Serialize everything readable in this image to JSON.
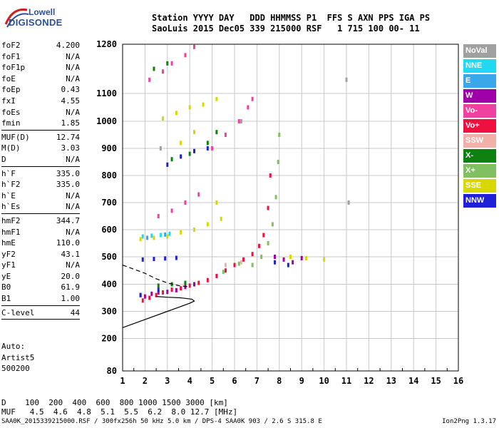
{
  "logo": {
    "line1": "Lowell",
    "line2": "DIGISONDE"
  },
  "header": {
    "line1": "Station YYYY DAY   DDD HHMMSS P1  FFS S AXN PPS IGA PS",
    "line2": "SaoLuis 2015 Dec05 339 215000 RSF   1 715 100 00- 11"
  },
  "params_group1": [
    {
      "k": "foF2",
      "v": "4.200"
    },
    {
      "k": "foF1",
      "v": "N/A"
    },
    {
      "k": "foF1p",
      "v": "N/A"
    },
    {
      "k": "foE",
      "v": "N/A"
    },
    {
      "k": "foEp",
      "v": "0.43"
    },
    {
      "k": "fxI",
      "v": "4.55"
    },
    {
      "k": "foEs",
      "v": "N/A"
    },
    {
      "k": "fmin",
      "v": "1.85"
    }
  ],
  "params_group2": [
    {
      "k": "MUF(D)",
      "v": "12.74"
    },
    {
      "k": "M(D)",
      "v": "3.03"
    },
    {
      "k": "D",
      "v": "N/A"
    }
  ],
  "params_group3": [
    {
      "k": "h`F",
      "v": "335.0"
    },
    {
      "k": "h`F2",
      "v": "335.0"
    },
    {
      "k": "h`E",
      "v": "N/A"
    },
    {
      "k": "h`Es",
      "v": "N/A"
    }
  ],
  "params_group4": [
    {
      "k": "hmF2",
      "v": "344.7"
    },
    {
      "k": "hmF1",
      "v": "N/A"
    },
    {
      "k": "hmE",
      "v": "110.0"
    },
    {
      "k": "yF2",
      "v": "43.1"
    },
    {
      "k": "yF1",
      "v": "N/A"
    },
    {
      "k": "yE",
      "v": "20.0"
    },
    {
      "k": "B0",
      "v": "61.9"
    },
    {
      "k": "B1",
      "v": "1.00"
    }
  ],
  "params_group5": [
    {
      "k": "C-level",
      "v": "44"
    }
  ],
  "auto": {
    "l1": "Auto:",
    "l2": "Artist5",
    "l3": "500200"
  },
  "legend": [
    {
      "label": "NoVal",
      "color": "#a0a0a0"
    },
    {
      "label": "NNE",
      "color": "#22d8f0"
    },
    {
      "label": "E",
      "color": "#3aa8e8"
    },
    {
      "label": "W",
      "color": "#a000a8"
    },
    {
      "label": "Vo-",
      "color": "#f040a0"
    },
    {
      "label": "Vo+",
      "color": "#f01040"
    },
    {
      "label": "SSW",
      "color": "#f0b0a8"
    },
    {
      "label": "X-",
      "color": "#108010"
    },
    {
      "label": "X+",
      "color": "#80c060"
    },
    {
      "label": "SSE",
      "color": "#d8d800"
    },
    {
      "label": "NNW",
      "color": "#2020d8"
    }
  ],
  "dmuf": {
    "d_row": "D    100  200  400  600  800 1000 1500 3000 [km]",
    "muf_row": "MUF   4.5  4.6  4.8  5.1  5.5  6.2  8.0 12.7 [MHz]"
  },
  "footer": "SAA0K_2015339215000.RSF / 300fx256h 50 kHz 5.0 km / DPS-4 SAA0K 903 / 2.6 S 315.8 E",
  "version": "Ion2Png 1.3.17",
  "chart_data": {
    "type": "scatter",
    "x_ticks": [
      1,
      2,
      3,
      4,
      5,
      6,
      7,
      8,
      9,
      10,
      11,
      12,
      13,
      14,
      15,
      16
    ],
    "y_ticks": [
      80,
      200,
      300,
      400,
      500,
      600,
      700,
      800,
      900,
      1000,
      1100,
      1280
    ],
    "xlim": [
      1,
      16
    ],
    "y_scale": "piecewise",
    "grid": true,
    "legend_position": "right",
    "series": [
      {
        "name": "Vo+",
        "color": "#f01040",
        "points": [
          [
            1.9,
            340
          ],
          [
            2.2,
            350
          ],
          [
            2.5,
            360
          ],
          [
            2.8,
            370
          ],
          [
            3.2,
            380
          ],
          [
            3.6,
            385
          ],
          [
            4.0,
            395
          ],
          [
            4.4,
            405
          ],
          [
            4.8,
            415
          ],
          [
            5.2,
            430
          ],
          [
            5.6,
            450
          ],
          [
            6.0,
            470
          ],
          [
            6.4,
            490
          ],
          [
            6.8,
            510
          ],
          [
            7.1,
            540
          ],
          [
            7.3,
            580
          ],
          [
            7.5,
            680
          ],
          [
            7.6,
            800
          ]
        ]
      },
      {
        "name": "W",
        "color": "#a000a8",
        "points": [
          [
            1.8,
            360
          ],
          [
            2.0,
            355
          ],
          [
            2.3,
            365
          ],
          [
            2.6,
            370
          ],
          [
            3.0,
            372
          ],
          [
            3.4,
            378
          ],
          [
            3.8,
            390
          ],
          [
            4.2,
            400
          ],
          [
            7.8,
            500
          ],
          [
            8.2,
            490
          ],
          [
            8.6,
            480
          ],
          [
            9.0,
            495
          ]
        ]
      },
      {
        "name": "X+",
        "color": "#80c060",
        "points": [
          [
            6.8,
            470
          ],
          [
            7.2,
            500
          ],
          [
            7.5,
            550
          ],
          [
            7.7,
            620
          ],
          [
            7.85,
            720
          ],
          [
            7.95,
            850
          ],
          [
            8.0,
            950
          ],
          [
            5.5,
            445
          ],
          [
            6.2,
            475
          ]
        ]
      },
      {
        "name": "SSE",
        "color": "#d8d800",
        "points": [
          [
            1.8,
            565
          ],
          [
            2.4,
            570
          ],
          [
            3.0,
            575
          ],
          [
            3.6,
            590
          ],
          [
            4.2,
            600
          ],
          [
            4.8,
            620
          ],
          [
            5.4,
            640
          ],
          [
            2.8,
            1010
          ],
          [
            3.4,
            1030
          ],
          [
            4.0,
            1050
          ],
          [
            4.6,
            1060
          ],
          [
            5.2,
            1080
          ],
          [
            3.6,
            920
          ],
          [
            4.2,
            960
          ],
          [
            5.2,
            700
          ],
          [
            8.5,
            500
          ],
          [
            9.2,
            495
          ],
          [
            10.0,
            490
          ]
        ]
      },
      {
        "name": "NNW",
        "color": "#2020d8",
        "points": [
          [
            1.9,
            490
          ],
          [
            2.4,
            492
          ],
          [
            2.9,
            494
          ],
          [
            3.4,
            496
          ],
          [
            1.8,
            360
          ],
          [
            2.6,
            380
          ],
          [
            3.0,
            840
          ],
          [
            3.6,
            870
          ],
          [
            4.2,
            890
          ],
          [
            4.8,
            900
          ],
          [
            7.8,
            480
          ],
          [
            8.4,
            470
          ]
        ]
      },
      {
        "name": "X-",
        "color": "#108010",
        "points": [
          [
            2.6,
            395
          ],
          [
            3.2,
            400
          ],
          [
            3.8,
            405
          ],
          [
            3.2,
            860
          ],
          [
            4.0,
            880
          ],
          [
            4.8,
            920
          ],
          [
            5.2,
            960
          ],
          [
            2.4,
            1190
          ],
          [
            3.0,
            1210
          ]
        ]
      },
      {
        "name": "Vo-",
        "color": "#f040a0",
        "points": [
          [
            2.2,
            1150
          ],
          [
            2.8,
            1180
          ],
          [
            3.2,
            1210
          ],
          [
            3.8,
            1240
          ],
          [
            4.2,
            1270
          ],
          [
            5.0,
            900
          ],
          [
            5.6,
            950
          ],
          [
            6.2,
            1000
          ],
          [
            6.6,
            1050
          ],
          [
            6.8,
            1080
          ],
          [
            2.6,
            650
          ],
          [
            3.2,
            670
          ],
          [
            3.8,
            700
          ],
          [
            4.4,
            730
          ]
        ]
      },
      {
        "name": "NNE",
        "color": "#22d8f0",
        "points": [
          [
            1.9,
            575
          ],
          [
            2.3,
            578
          ],
          [
            2.7,
            580
          ],
          [
            3.1,
            585
          ]
        ]
      },
      {
        "name": "E",
        "color": "#3aa8e8",
        "points": [
          [
            2.1,
            570
          ],
          [
            2.9,
            582
          ]
        ]
      },
      {
        "name": "SSW",
        "color": "#f0b0a8",
        "points": [
          [
            5.6,
            470
          ],
          [
            6.3,
            480
          ]
        ]
      },
      {
        "name": "NoVal",
        "color": "#a0a0a0",
        "points": [
          [
            11.0,
            1150
          ],
          [
            11.1,
            700
          ],
          [
            2.7,
            900
          ],
          [
            6.3,
            1000
          ]
        ]
      }
    ],
    "profile_curves": [
      {
        "style": "solid",
        "points": [
          [
            1.0,
            240
          ],
          [
            2.0,
            270
          ],
          [
            3.0,
            300
          ],
          [
            3.6,
            318
          ],
          [
            4.0,
            330
          ],
          [
            4.2,
            338
          ],
          [
            4.1,
            345
          ],
          [
            3.6,
            350
          ],
          [
            3.0,
            352
          ],
          [
            2.5,
            355
          ]
        ]
      },
      {
        "style": "dashed",
        "points": [
          [
            1.0,
            470
          ],
          [
            1.5,
            455
          ],
          [
            2.0,
            440
          ],
          [
            2.5,
            420
          ],
          [
            3.0,
            405
          ],
          [
            3.5,
            395
          ],
          [
            4.0,
            390
          ]
        ]
      }
    ]
  }
}
